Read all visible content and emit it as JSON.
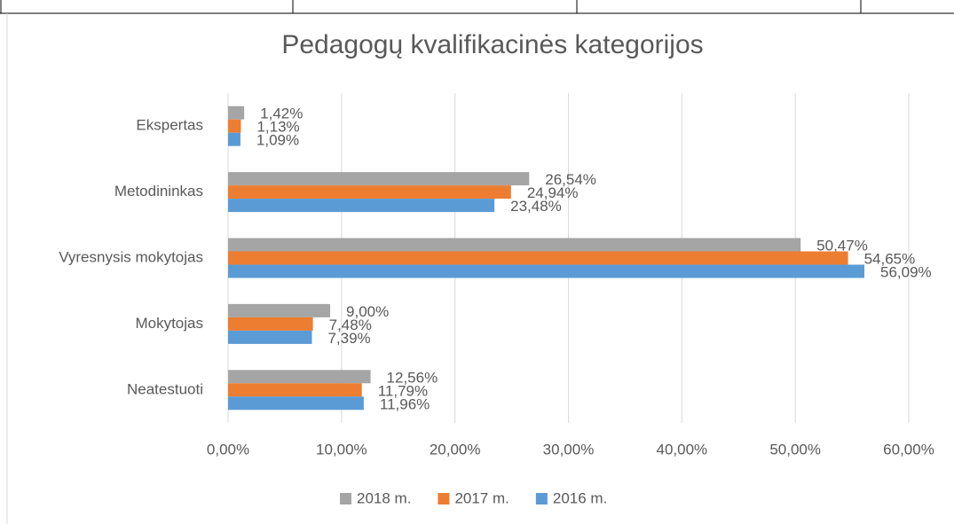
{
  "chart_data": {
    "type": "bar",
    "orientation": "horizontal",
    "title": "Pedagogų kvalifikacinės kategorijos",
    "categories": [
      "Ekspertas",
      "Metodininkas",
      "Vyresnysis mokytojas",
      "Mokytojas",
      "Neatestuoti"
    ],
    "series": [
      {
        "name": "2018 m.",
        "color": "#a5a5a5",
        "values": [
          1.42,
          26.54,
          50.47,
          9.0,
          12.56
        ],
        "value_labels": [
          "1,42%",
          "26,54%",
          "50,47%",
          "9,00%",
          "12,56%"
        ]
      },
      {
        "name": "2017 m.",
        "color": "#ed7d31",
        "values": [
          1.13,
          24.94,
          54.65,
          7.48,
          11.79
        ],
        "value_labels": [
          "1,13%",
          "24,94%",
          "54,65%",
          "7,48%",
          "11,79%"
        ]
      },
      {
        "name": "2016 m.",
        "color": "#5b9bd5",
        "values": [
          1.09,
          23.48,
          56.09,
          7.39,
          11.96
        ],
        "value_labels": [
          "1,09%",
          "23,48%",
          "56,09%",
          "7,39%",
          "11,96%"
        ]
      }
    ],
    "xlim": [
      0,
      60
    ],
    "xticks": [
      {
        "value": 0,
        "label": "0,00%"
      },
      {
        "value": 10,
        "label": "10,00%"
      },
      {
        "value": 20,
        "label": "20,00%"
      },
      {
        "value": 30,
        "label": "30,00%"
      },
      {
        "value": 40,
        "label": "40,00%"
      },
      {
        "value": 50,
        "label": "50,00%"
      },
      {
        "value": 60,
        "label": "60,00%"
      }
    ],
    "grid": true,
    "legend": "bottom"
  }
}
